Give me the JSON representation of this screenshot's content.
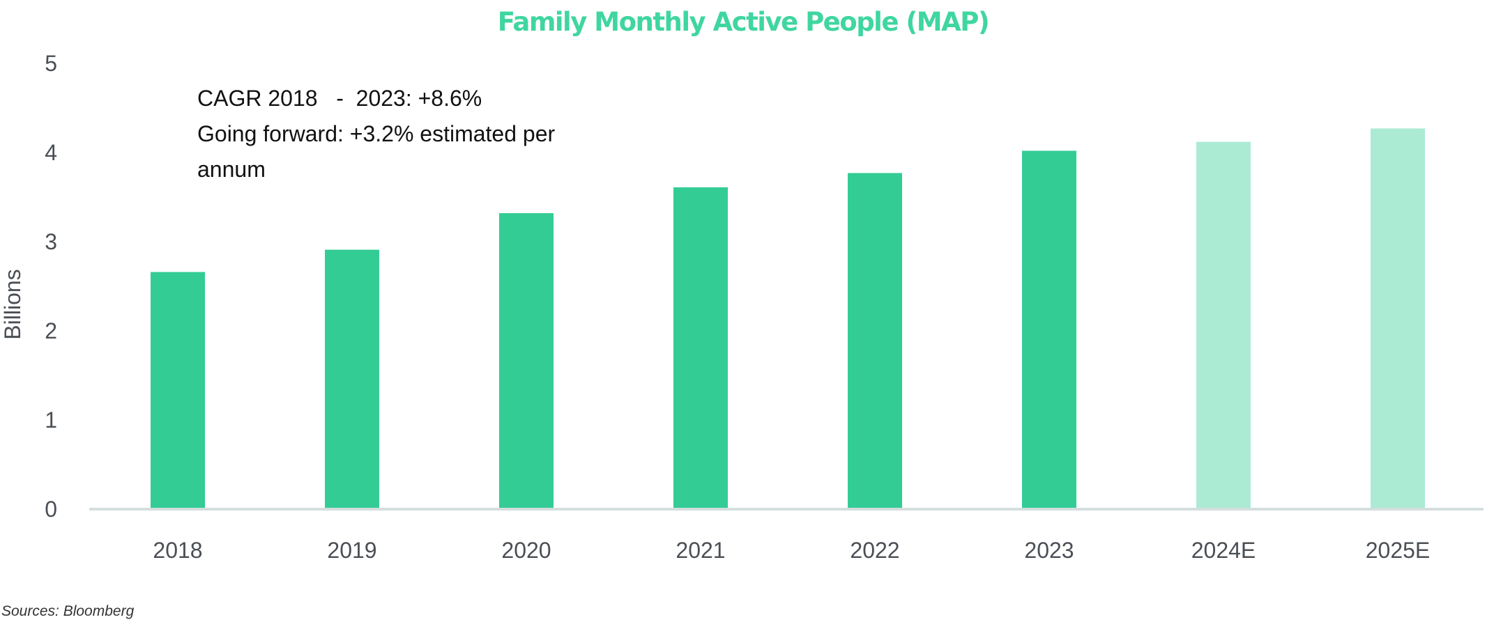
{
  "chart_data": {
    "type": "bar",
    "title": "Family Monthly Active People (MAP)",
    "ylabel": "Billions",
    "xlabel": "",
    "ylim": [
      0,
      5
    ],
    "yticks": [
      0,
      1,
      2,
      3,
      4,
      5
    ],
    "grid": false,
    "categories": [
      "2018",
      "2019",
      "2020",
      "2021",
      "2022",
      "2023",
      "2024E",
      "2025E"
    ],
    "values": [
      2.66,
      2.91,
      3.32,
      3.61,
      3.77,
      4.02,
      4.12,
      4.27
    ],
    "estimated": [
      false,
      false,
      false,
      false,
      false,
      false,
      true,
      true
    ],
    "annotations": [
      "CAGR 2018   -  2023: +8.6%",
      "Going forward: +3.2% estimated per",
      "annum"
    ],
    "source": "Sources: Bloomberg"
  },
  "colors": {
    "title": "#3fd6a0",
    "actual_bar": "#33cc95",
    "estimate_bar": "#abebd4",
    "baseline": "#d5dede",
    "tick_text": "#4a4f55"
  }
}
